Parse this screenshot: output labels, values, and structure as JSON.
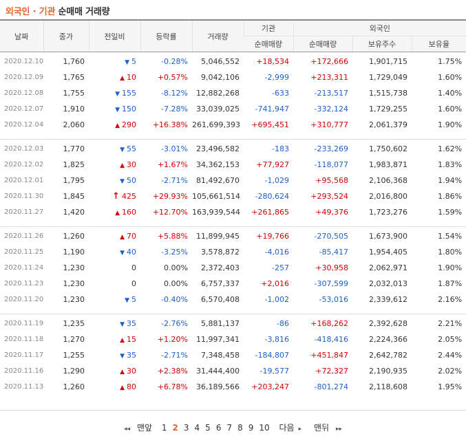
{
  "title": {
    "part1": "외국인",
    "sep": "·",
    "part2": "기관",
    "part3": "순매매 거래량"
  },
  "headers": {
    "date": "날짜",
    "close": "종가",
    "change": "전일비",
    "rate": "등락률",
    "volume": "거래량",
    "inst": "기관",
    "foreign": "외국인",
    "inst_net": "순매매량",
    "foreign_net": "순매매량",
    "holdings": "보유주수",
    "ratio": "보유율"
  },
  "groups": [
    [
      {
        "date": "2020.12.10",
        "close": "1,760",
        "dir": "down",
        "change": "5",
        "rate": "-0.28%",
        "volume": "5,046,552",
        "inst": "+18,534",
        "foreign": "+172,666",
        "holdings": "1,901,715",
        "ratio": "1.75%"
      },
      {
        "date": "2020.12.09",
        "close": "1,765",
        "dir": "up",
        "change": "10",
        "rate": "+0.57%",
        "volume": "9,042,106",
        "inst": "-2,999",
        "foreign": "+213,311",
        "holdings": "1,729,049",
        "ratio": "1.60%"
      },
      {
        "date": "2020.12.08",
        "close": "1,755",
        "dir": "down",
        "change": "155",
        "rate": "-8.12%",
        "volume": "12,882,268",
        "inst": "-633",
        "foreign": "-213,517",
        "holdings": "1,515,738",
        "ratio": "1.40%"
      },
      {
        "date": "2020.12.07",
        "close": "1,910",
        "dir": "down",
        "change": "150",
        "rate": "-7.28%",
        "volume": "33,039,025",
        "inst": "-741,947",
        "foreign": "-332,124",
        "holdings": "1,729,255",
        "ratio": "1.60%"
      },
      {
        "date": "2020.12.04",
        "close": "2,060",
        "dir": "up",
        "change": "290",
        "rate": "+16.38%",
        "volume": "261,699,393",
        "inst": "+695,451",
        "foreign": "+310,777",
        "holdings": "2,061,379",
        "ratio": "1.90%"
      }
    ],
    [
      {
        "date": "2020.12.03",
        "close": "1,770",
        "dir": "down",
        "change": "55",
        "rate": "-3.01%",
        "volume": "23,496,582",
        "inst": "-183",
        "foreign": "-233,269",
        "holdings": "1,750,602",
        "ratio": "1.62%"
      },
      {
        "date": "2020.12.02",
        "close": "1,825",
        "dir": "up",
        "change": "30",
        "rate": "+1.67%",
        "volume": "34,362,153",
        "inst": "+77,927",
        "foreign": "-118,077",
        "holdings": "1,983,871",
        "ratio": "1.83%"
      },
      {
        "date": "2020.12.01",
        "close": "1,795",
        "dir": "down",
        "change": "50",
        "rate": "-2.71%",
        "volume": "81,492,670",
        "inst": "-1,029",
        "foreign": "+95,568",
        "holdings": "2,106,368",
        "ratio": "1.94%"
      },
      {
        "date": "2020.11.30",
        "close": "1,845",
        "dir": "limit",
        "change": "425",
        "rate": "+29.93%",
        "volume": "105,661,514",
        "inst": "-280,624",
        "foreign": "+293,524",
        "holdings": "2,016,800",
        "ratio": "1.86%"
      },
      {
        "date": "2020.11.27",
        "close": "1,420",
        "dir": "up",
        "change": "160",
        "rate": "+12.70%",
        "volume": "163,939,544",
        "inst": "+261,865",
        "foreign": "+49,376",
        "holdings": "1,723,276",
        "ratio": "1.59%"
      }
    ],
    [
      {
        "date": "2020.11.26",
        "close": "1,260",
        "dir": "up",
        "change": "70",
        "rate": "+5.88%",
        "volume": "11,899,945",
        "inst": "+19,766",
        "foreign": "-270,505",
        "holdings": "1,673,900",
        "ratio": "1.54%"
      },
      {
        "date": "2020.11.25",
        "close": "1,190",
        "dir": "down",
        "change": "40",
        "rate": "-3.25%",
        "volume": "3,578,872",
        "inst": "-4,016",
        "foreign": "-85,417",
        "holdings": "1,954,405",
        "ratio": "1.80%"
      },
      {
        "date": "2020.11.24",
        "close": "1,230",
        "dir": "flat",
        "change": "0",
        "rate": "0.00%",
        "volume": "2,372,403",
        "inst": "-257",
        "foreign": "+30,958",
        "holdings": "2,062,971",
        "ratio": "1.90%"
      },
      {
        "date": "2020.11.23",
        "close": "1,230",
        "dir": "flat",
        "change": "0",
        "rate": "0.00%",
        "volume": "6,757,337",
        "inst": "+2,016",
        "foreign": "-307,599",
        "holdings": "2,032,013",
        "ratio": "1.87%"
      },
      {
        "date": "2020.11.20",
        "close": "1,230",
        "dir": "down",
        "change": "5",
        "rate": "-0.40%",
        "volume": "6,570,408",
        "inst": "-1,002",
        "foreign": "-53,016",
        "holdings": "2,339,612",
        "ratio": "2.16%"
      }
    ],
    [
      {
        "date": "2020.11.19",
        "close": "1,235",
        "dir": "down",
        "change": "35",
        "rate": "-2.76%",
        "volume": "5,881,137",
        "inst": "-86",
        "foreign": "+168,262",
        "holdings": "2,392,628",
        "ratio": "2.21%"
      },
      {
        "date": "2020.11.18",
        "close": "1,270",
        "dir": "up",
        "change": "15",
        "rate": "+1.20%",
        "volume": "11,997,341",
        "inst": "-3,816",
        "foreign": "-418,416",
        "holdings": "2,224,366",
        "ratio": "2.05%"
      },
      {
        "date": "2020.11.17",
        "close": "1,255",
        "dir": "down",
        "change": "35",
        "rate": "-2.71%",
        "volume": "7,348,458",
        "inst": "-184,807",
        "foreign": "+451,847",
        "holdings": "2,642,782",
        "ratio": "2.44%"
      },
      {
        "date": "2020.11.16",
        "close": "1,290",
        "dir": "up",
        "change": "30",
        "rate": "+2.38%",
        "volume": "31,444,400",
        "inst": "-19,577",
        "foreign": "+72,327",
        "holdings": "2,190,935",
        "ratio": "2.02%"
      },
      {
        "date": "2020.11.13",
        "close": "1,260",
        "dir": "up",
        "change": "80",
        "rate": "+6.78%",
        "volume": "36,189,566",
        "inst": "+203,247",
        "foreign": "-801,274",
        "holdings": "2,118,608",
        "ratio": "1.95%"
      }
    ]
  ],
  "icons": {
    "up": "triangle-up-icon",
    "down": "triangle-down-icon",
    "limit": "arrow-up-icon",
    "first": "double-chevron-left-icon",
    "last": "double-chevron-right-icon",
    "next": "chevron-right-icon"
  },
  "colors": {
    "up": "#d60000",
    "down": "#1a5fd1",
    "accent": "#e8632b"
  },
  "pager": {
    "first": "맨앞",
    "pages": [
      "1",
      "2",
      "3",
      "4",
      "5",
      "6",
      "7",
      "8",
      "9",
      "10"
    ],
    "current": "2",
    "next": "다음",
    "last": "맨뒤"
  }
}
